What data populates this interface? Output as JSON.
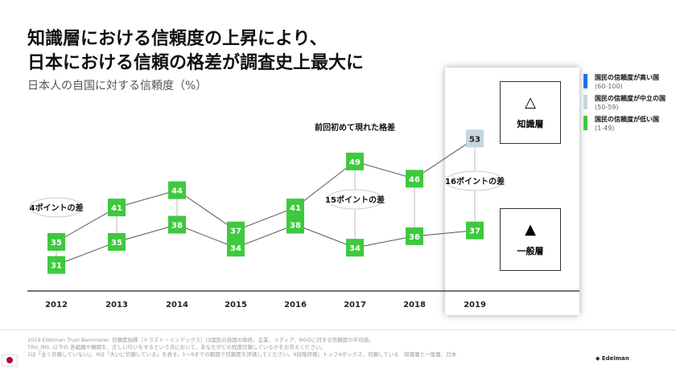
{
  "title_line1": "知識層における信頼度の上昇により、",
  "title_line2": "日本における信頼の格差が調査史上最大に",
  "subtitle": "日本人の自国に対する信頼度（%）",
  "groups": {
    "informed": "知識層",
    "general": "一般層"
  },
  "legend": [
    {
      "label": "国民の信頼度が高い国",
      "range": "(60-100)",
      "color": "#1a73e8"
    },
    {
      "label": "国民の信頼度が中立の国",
      "range": "(50-59)",
      "color": "#c5d6de"
    },
    {
      "label": "国民の信頼度が低い国",
      "range": "(1-49)",
      "color": "#3ec93e"
    }
  ],
  "annotations": {
    "gap2012": "4ポイントの差",
    "gap2017": "15ポイントの差",
    "gap2019": "16ポイントの差",
    "first_gap": "前回初めて現れた格差"
  },
  "chart_data": {
    "type": "line",
    "categories": [
      "2012",
      "2013",
      "2014",
      "2015",
      "2016",
      "2017",
      "2018",
      "2019"
    ],
    "series": [
      {
        "name": "知識層",
        "values": [
          35,
          41,
          44,
          37,
          41,
          49,
          46,
          53
        ]
      },
      {
        "name": "一般層",
        "values": [
          31,
          35,
          38,
          34,
          38,
          34,
          36,
          37
        ]
      }
    ],
    "grid": false
  },
  "footer": {
    "line1": "2019 Edelman Trust Barometer. 信頼度指標（トラスト・インデックス）は国民の自国の政府、企業、メディア、NGOに対する信頼度の平均値。",
    "line2": "TRU_INS. 以下の 各組織や機関を、正しい行いをするという点において、あなたがどの程度信頼しているかをお答えください。",
    "line3": "1は「全く信頼していない」、9は「大いに信頼している」を表す。1～9までの範囲で信頼度を評価してください。9段階評価；トップ4ボックス、信頼している　知識層と一般層、日本",
    "logo": "Edelman"
  }
}
